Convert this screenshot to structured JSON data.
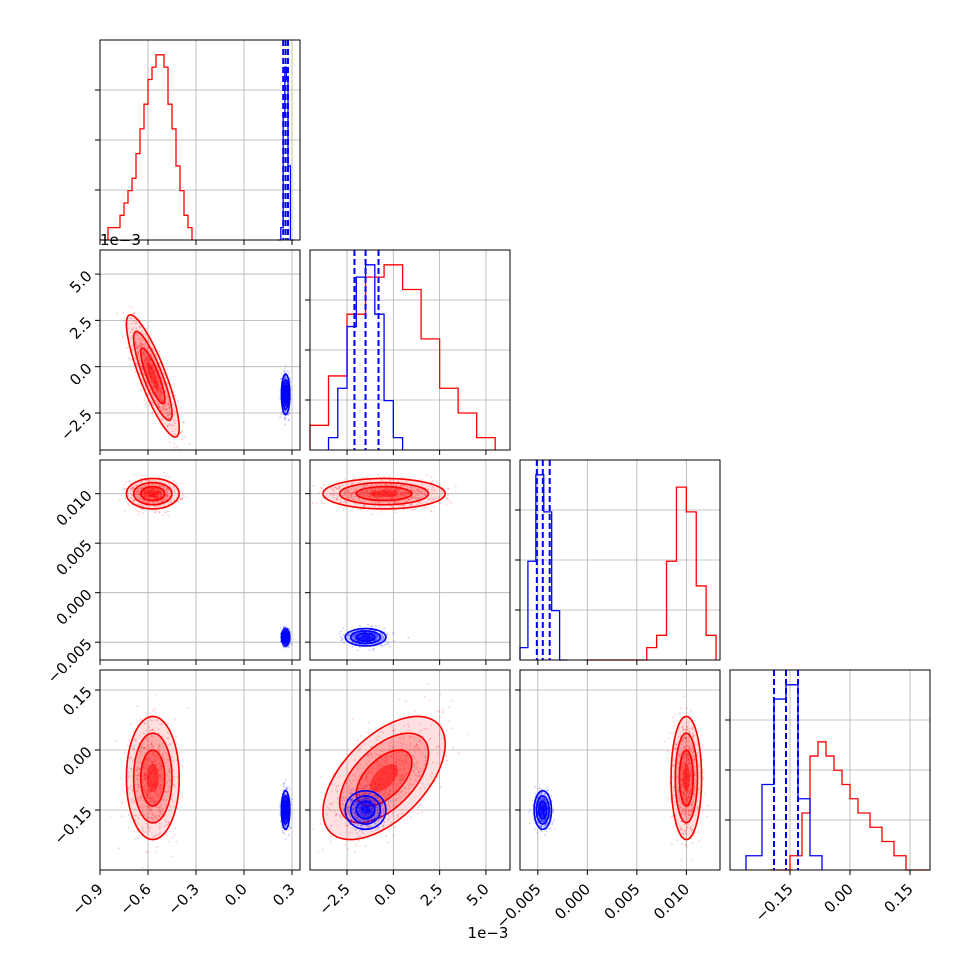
{
  "colors": {
    "red": "#ff0000",
    "blue": "#0000ff",
    "grid": "#b0b0b0",
    "axis": "#000000"
  },
  "figure": {
    "x_offset_label": "1e−3",
    "y_offset_label": "1e−3"
  },
  "chart_data": {
    "type": "corner",
    "title": "",
    "grid": true,
    "parameters": [
      {
        "ticks": [
          -0.9,
          -0.6,
          -0.3,
          0.0,
          0.3
        ],
        "tick_labels": [
          "−0.9",
          "−0.6",
          "−0.3",
          "0.0",
          "0.3"
        ],
        "range": [
          -0.9,
          0.35
        ]
      },
      {
        "ticks": [
          -0.0025,
          0.0,
          0.0025,
          0.005
        ],
        "tick_labels": [
          "−2.5",
          "0.0",
          "2.5",
          "5.0"
        ],
        "range": [
          -0.0045,
          0.0063
        ],
        "offset_label": "1e−3"
      },
      {
        "ticks": [
          -0.005,
          0.0,
          0.005,
          0.01
        ],
        "tick_labels": [
          "−0.005",
          "0.000",
          "0.005",
          "0.010"
        ],
        "range": [
          -0.0068,
          0.0134
        ]
      },
      {
        "ticks": [
          -0.15,
          0.0,
          0.15
        ],
        "tick_labels": [
          "−0.15",
          "0.00",
          "0.15"
        ],
        "range": [
          -0.3,
          0.2
        ]
      }
    ],
    "series": [
      {
        "color": "#ff0000",
        "mean": [
          -0.57,
          -0.0005,
          0.01,
          -0.07
        ],
        "std": [
          0.075,
          0.0015,
          0.0007,
          0.07
        ],
        "correlations": {
          "0-1": -0.85,
          "1-3": 0.55
        },
        "histograms": [
          {
            "bins": [
              -0.9,
              -0.875,
              -0.85,
              -0.825,
              -0.8,
              -0.775,
              -0.75,
              -0.725,
              -0.7,
              -0.675,
              -0.65,
              -0.625,
              -0.6,
              -0.575,
              -0.55,
              -0.525,
              -0.5,
              -0.475,
              -0.45,
              -0.425,
              -0.4,
              -0.375,
              -0.35,
              -0.325
            ],
            "counts": [
              0,
              0,
              1,
              1,
              1,
              2,
              3,
              4,
              5,
              7,
              9,
              11,
              13,
              14,
              15,
              15,
              14,
              11,
              9,
              6,
              4,
              2,
              1,
              0
            ]
          },
          {
            "bins": [
              -0.0045,
              -0.0035,
              -0.0025,
              -0.0015,
              -0.0005,
              0.0005,
              0.0015,
              0.0025,
              0.0035,
              0.0045,
              0.0055
            ],
            "counts": [
              2,
              6,
              11,
              14,
              15,
              13,
              9,
              5,
              3,
              1
            ]
          },
          {
            "bins": [
              0.0,
              0.002,
              0.004,
              0.006,
              0.007,
              0.008,
              0.009,
              0.01,
              0.011,
              0.012,
              0.013
            ],
            "counts": [
              0,
              0,
              0,
              1,
              2,
              8,
              14,
              12,
              6,
              2
            ]
          },
          {
            "bins": [
              -0.2,
              -0.15,
              -0.12,
              -0.1,
              -0.08,
              -0.06,
              -0.04,
              -0.02,
              0.0,
              0.02,
              0.05,
              0.08,
              0.11,
              0.14,
              0.2
            ],
            "counts": [
              0,
              1,
              4,
              8,
              9,
              8,
              7,
              6,
              5,
              4,
              3,
              2,
              1,
              0
            ]
          }
        ]
      },
      {
        "color": "#0000ff",
        "mean": [
          0.26,
          -0.0015,
          -0.0045,
          -0.15
        ],
        "std": [
          0.012,
          0.0005,
          0.0004,
          0.022
        ],
        "correlations": {},
        "quantiles": [
          [
            0.245,
            0.26,
            0.275
          ],
          [
            -0.0021,
            -0.0015,
            -0.0008
          ],
          [
            -0.0051,
            -0.0045,
            -0.0038
          ],
          [
            -0.19,
            -0.16,
            -0.13
          ]
        ],
        "histograms": [
          {
            "bins": [
              0.21,
              0.23,
              0.245,
              0.255,
              0.265,
              0.275,
              0.29,
              0.31
            ],
            "counts": [
              0,
              1,
              10,
              14,
              13,
              6,
              0
            ]
          },
          {
            "bins": [
              -0.0035,
              -0.003,
              -0.0025,
              -0.002,
              -0.0015,
              -0.001,
              -0.0005,
              0.0,
              0.0005
            ],
            "counts": [
              1,
              5,
              10,
              14,
              15,
              11,
              4,
              1
            ]
          },
          {
            "bins": [
              -0.0068,
              -0.006,
              -0.0052,
              -0.0044,
              -0.0036,
              -0.0028,
              -0.002
            ],
            "counts": [
              1,
              8,
              15,
              12,
              4,
              0
            ]
          },
          {
            "bins": [
              -0.26,
              -0.22,
              -0.19,
              -0.16,
              -0.13,
              -0.1,
              -0.07
            ],
            "counts": [
              1,
              6,
              12,
              13,
              5,
              1
            ]
          }
        ]
      }
    ]
  }
}
